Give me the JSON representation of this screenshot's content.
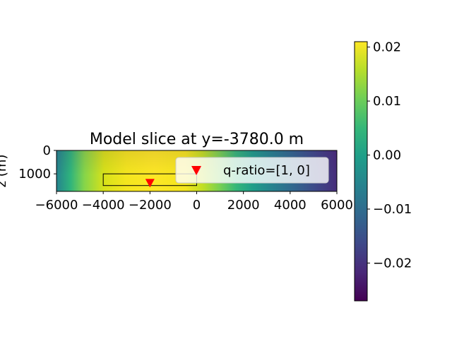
{
  "chart_data": {
    "type": "heatmap",
    "title": "Model slice at y=-3780.0 m",
    "xlabel": "",
    "ylabel": "z (m)",
    "xlim": [
      -6000,
      6000
    ],
    "ylim": [
      1750,
      0
    ],
    "x_ticks": [
      -6000,
      -4000,
      -2000,
      0,
      2000,
      4000,
      6000
    ],
    "x_tick_labels": [
      "−6000",
      "−4000",
      "−2000",
      "0",
      "2000",
      "4000",
      "6000"
    ],
    "y_ticks": [
      0,
      1000
    ],
    "y_tick_labels": [
      "0",
      "1000"
    ],
    "colormap": "viridis",
    "colorbar": {
      "range": [
        -0.027,
        0.021
      ],
      "ticks": [
        0.02,
        0.01,
        0.0,
        -0.01,
        -0.02
      ],
      "tick_labels": [
        "0.02",
        "0.01",
        "0.00",
        "−0.01",
        "−0.02"
      ]
    },
    "rectangle": {
      "x": [
        -4000,
        0
      ],
      "z": [
        1000,
        1500
      ],
      "color": "#000000"
    },
    "markers": [
      {
        "x": -2000,
        "z": 1400,
        "symbol": "triangle-down",
        "color": "#ff0000"
      },
      {
        "x": 0,
        "z": 900,
        "symbol": "triangle-down",
        "color": "#ff0000"
      }
    ],
    "legend": {
      "label": "q-ratio=[1, 0]",
      "position": "upper right",
      "marker_color": "#ff0000"
    }
  }
}
